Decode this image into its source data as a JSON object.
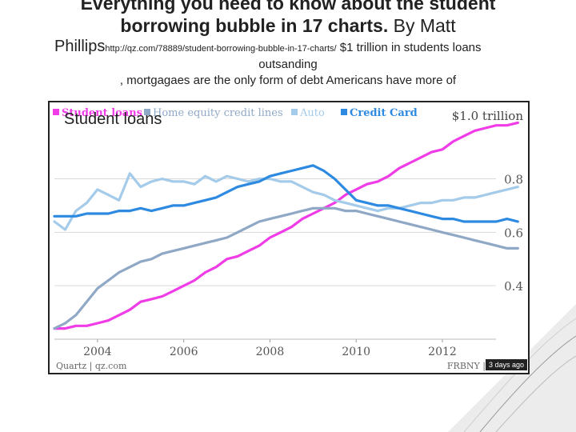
{
  "slide": {
    "title_line1": "Everything you need to know about the student",
    "title_line2_bold": "borrowing bubble in 17 charts.",
    "title_line2_rest": " By Matt",
    "author_tail": "Phillips",
    "url": "http://qz.com/78889/student-borrowing-bubble-in-17-charts/",
    "subtitle": " $1 trillion in students loans",
    "subtitle_cont": "outsanding",
    "note": ", mortgagaes are the only form of debt Americans have more of",
    "overlay_label": "Student loans"
  },
  "chart_data": {
    "type": "line",
    "legend": [
      "Student loans",
      "Home equity credit lines",
      "Auto",
      "Credit Card"
    ],
    "legend_placement": "top-left",
    "top_right_label": "$1.0 trillion",
    "x_ticks": [
      "2004",
      "2006",
      "2008",
      "2010",
      "2012"
    ],
    "y_ticks": [
      "0.8",
      "0.6",
      "0.4"
    ],
    "y_tick_values": [
      0.8,
      0.6,
      0.4
    ],
    "xlim": [
      2003.0,
      2013.8
    ],
    "ylim": [
      0.2,
      1.05
    ],
    "grid": "horizontal",
    "source_left": "Quartz | qz.com",
    "source_right": "FRBNY |",
    "timestamp": "3 days ago",
    "colors": {
      "Student loans": "#f03ce6",
      "Home equity credit lines": "#8fa8c6",
      "Auto": "#a4cbea",
      "Credit Card": "#2d8ae0"
    },
    "series": [
      {
        "name": "Student loans",
        "x": [
          2003.0,
          2003.25,
          2003.5,
          2003.75,
          2004.0,
          2004.25,
          2004.5,
          2004.75,
          2005.0,
          2005.25,
          2005.5,
          2005.75,
          2006.0,
          2006.25,
          2006.5,
          2006.75,
          2007.0,
          2007.25,
          2007.5,
          2007.75,
          2008.0,
          2008.25,
          2008.5,
          2008.75,
          2009.0,
          2009.25,
          2009.5,
          2009.75,
          2010.0,
          2010.25,
          2010.5,
          2010.75,
          2011.0,
          2011.25,
          2011.5,
          2011.75,
          2012.0,
          2012.25,
          2012.5,
          2012.75,
          2013.0,
          2013.25,
          2013.5,
          2013.75
        ],
        "values": [
          0.24,
          0.24,
          0.25,
          0.25,
          0.26,
          0.27,
          0.29,
          0.31,
          0.34,
          0.35,
          0.36,
          0.38,
          0.4,
          0.42,
          0.45,
          0.47,
          0.5,
          0.51,
          0.53,
          0.55,
          0.58,
          0.6,
          0.62,
          0.65,
          0.67,
          0.69,
          0.71,
          0.74,
          0.76,
          0.78,
          0.79,
          0.81,
          0.84,
          0.86,
          0.88,
          0.9,
          0.91,
          0.94,
          0.96,
          0.98,
          0.99,
          1.0,
          1.0,
          1.01
        ]
      },
      {
        "name": "Home equity credit lines",
        "x": [
          2003.0,
          2003.25,
          2003.5,
          2003.75,
          2004.0,
          2004.25,
          2004.5,
          2004.75,
          2005.0,
          2005.25,
          2005.5,
          2005.75,
          2006.0,
          2006.25,
          2006.5,
          2006.75,
          2007.0,
          2007.25,
          2007.5,
          2007.75,
          2008.0,
          2008.25,
          2008.5,
          2008.75,
          2009.0,
          2009.25,
          2009.5,
          2009.75,
          2010.0,
          2010.25,
          2010.5,
          2010.75,
          2011.0,
          2011.25,
          2011.5,
          2011.75,
          2012.0,
          2012.25,
          2012.5,
          2012.75,
          2013.0,
          2013.25,
          2013.5,
          2013.75
        ],
        "values": [
          0.24,
          0.26,
          0.29,
          0.34,
          0.39,
          0.42,
          0.45,
          0.47,
          0.49,
          0.5,
          0.52,
          0.53,
          0.54,
          0.55,
          0.56,
          0.57,
          0.58,
          0.6,
          0.62,
          0.64,
          0.65,
          0.66,
          0.67,
          0.68,
          0.69,
          0.69,
          0.69,
          0.68,
          0.68,
          0.67,
          0.66,
          0.65,
          0.64,
          0.63,
          0.62,
          0.61,
          0.6,
          0.59,
          0.58,
          0.57,
          0.56,
          0.55,
          0.54,
          0.54
        ]
      },
      {
        "name": "Auto",
        "x": [
          2003.0,
          2003.25,
          2003.5,
          2003.75,
          2004.0,
          2004.25,
          2004.5,
          2004.75,
          2005.0,
          2005.25,
          2005.5,
          2005.75,
          2006.0,
          2006.25,
          2006.5,
          2006.75,
          2007.0,
          2007.25,
          2007.5,
          2007.75,
          2008.0,
          2008.25,
          2008.5,
          2008.75,
          2009.0,
          2009.25,
          2009.5,
          2009.75,
          2010.0,
          2010.25,
          2010.5,
          2010.75,
          2011.0,
          2011.25,
          2011.5,
          2011.75,
          2012.0,
          2012.25,
          2012.5,
          2012.75,
          2013.0,
          2013.25,
          2013.5,
          2013.75
        ],
        "values": [
          0.64,
          0.61,
          0.68,
          0.71,
          0.76,
          0.74,
          0.72,
          0.82,
          0.77,
          0.79,
          0.8,
          0.79,
          0.79,
          0.78,
          0.81,
          0.79,
          0.81,
          0.8,
          0.79,
          0.8,
          0.8,
          0.79,
          0.79,
          0.77,
          0.75,
          0.74,
          0.72,
          0.71,
          0.7,
          0.69,
          0.68,
          0.69,
          0.69,
          0.7,
          0.71,
          0.71,
          0.72,
          0.72,
          0.73,
          0.73,
          0.74,
          0.75,
          0.76,
          0.77
        ]
      },
      {
        "name": "Credit Card",
        "x": [
          2003.0,
          2003.25,
          2003.5,
          2003.75,
          2004.0,
          2004.25,
          2004.5,
          2004.75,
          2005.0,
          2005.25,
          2005.5,
          2005.75,
          2006.0,
          2006.25,
          2006.5,
          2006.75,
          2007.0,
          2007.25,
          2007.5,
          2007.75,
          2008.0,
          2008.25,
          2008.5,
          2008.75,
          2009.0,
          2009.25,
          2009.5,
          2009.75,
          2010.0,
          2010.25,
          2010.5,
          2010.75,
          2011.0,
          2011.25,
          2011.5,
          2011.75,
          2012.0,
          2012.25,
          2012.5,
          2012.75,
          2013.0,
          2013.25,
          2013.5,
          2013.75
        ],
        "values": [
          0.66,
          0.66,
          0.66,
          0.67,
          0.67,
          0.67,
          0.68,
          0.68,
          0.69,
          0.68,
          0.69,
          0.7,
          0.7,
          0.71,
          0.72,
          0.73,
          0.75,
          0.77,
          0.78,
          0.79,
          0.81,
          0.82,
          0.83,
          0.84,
          0.85,
          0.83,
          0.8,
          0.76,
          0.72,
          0.71,
          0.7,
          0.7,
          0.69,
          0.68,
          0.67,
          0.66,
          0.65,
          0.65,
          0.64,
          0.64,
          0.64,
          0.64,
          0.65,
          0.64
        ]
      }
    ]
  }
}
